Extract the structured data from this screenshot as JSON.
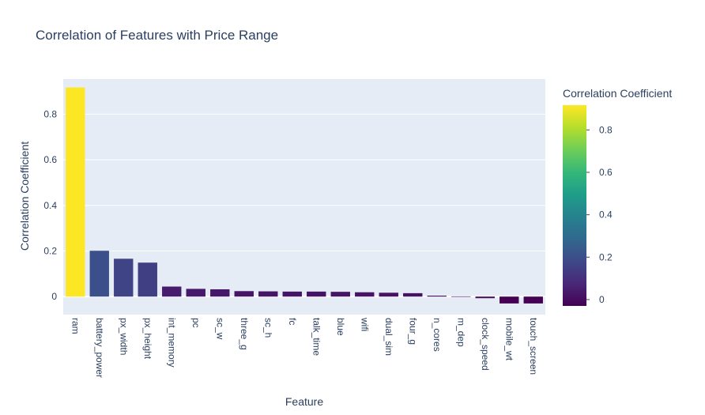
{
  "chart_data": {
    "type": "bar",
    "title": "Correlation of Features with Price Range",
    "xlabel": "Feature",
    "ylabel": "Correlation Coefficient",
    "categories": [
      "ram",
      "battery_power",
      "px_width",
      "px_height",
      "int_memory",
      "pc",
      "sc_w",
      "three_g",
      "sc_h",
      "fc",
      "talk_time",
      "blue",
      "wifi",
      "dual_sim",
      "four_g",
      "n_cores",
      "m_dep",
      "clock_speed",
      "mobile_wt",
      "touch_screen"
    ],
    "values": [
      0.917,
      0.201,
      0.166,
      0.149,
      0.044,
      0.034,
      0.032,
      0.024,
      0.023,
      0.022,
      0.022,
      0.021,
      0.019,
      0.017,
      0.015,
      0.004,
      0.001,
      -0.007,
      -0.03,
      -0.03
    ],
    "yticks": [
      0,
      0.2,
      0.4,
      0.6,
      0.8
    ],
    "ylim": [
      -0.079,
      0.954
    ],
    "grid": true,
    "colorscale": "Viridis",
    "colorscale_stops": [
      "#440154",
      "#482878",
      "#3e4989",
      "#31688e",
      "#26828e",
      "#1f9e89",
      "#35b779",
      "#6ece58",
      "#b5de2b",
      "#fde725"
    ],
    "colorbar": {
      "title": "Correlation Coefficient",
      "ticks": [
        0,
        0.2,
        0.4,
        0.6,
        0.8
      ],
      "range": [
        -0.03,
        0.917
      ]
    },
    "plot_background": "#e5ecf6"
  }
}
